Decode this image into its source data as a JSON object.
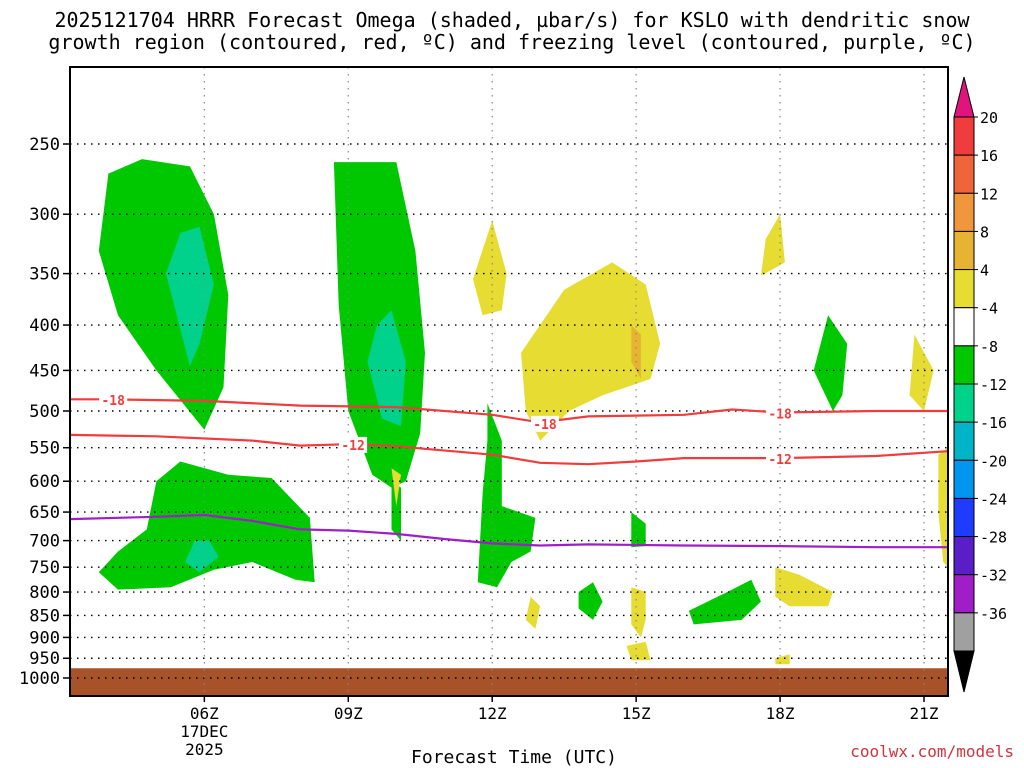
{
  "title_line1": "2025121704 HRRR Forecast Omega (shaded, µbar/s) for KSLO with dendritic snow",
  "title_line2": "growth region (contoured, red, ºC) and freezing level (contoured, purple, ºC)",
  "credit": "coolwx.com/models",
  "chart_data": {
    "type": "contour",
    "xlabel": "Forecast Time (UTC)",
    "ylabel": "",
    "xlim": [
      3.2,
      21.5
    ],
    "y_levels": [
      250,
      300,
      350,
      400,
      450,
      500,
      550,
      600,
      650,
      700,
      750,
      800,
      850,
      900,
      950,
      1000
    ],
    "x_ticks": [
      {
        "x": 6,
        "label": "06Z",
        "sub": [
          "17DEC",
          "2025"
        ]
      },
      {
        "x": 9,
        "label": "09Z",
        "sub": []
      },
      {
        "x": 12,
        "label": "12Z",
        "sub": []
      },
      {
        "x": 15,
        "label": "15Z",
        "sub": []
      },
      {
        "x": 18,
        "label": "18Z",
        "sub": []
      },
      {
        "x": 21,
        "label": "21Z",
        "sub": []
      }
    ],
    "colorbar": {
      "labels": [
        "20",
        "16",
        "12",
        "8",
        "4",
        "-4",
        "-8",
        "-12",
        "-16",
        "-20",
        "-24",
        "-28",
        "-32",
        "-36"
      ],
      "colors": [
        "#e0147c",
        "#f03c3c",
        "#f0643c",
        "#f0963c",
        "#e6b432",
        "#e6dc32",
        "#ffffff",
        "#00c800",
        "#00d28c",
        "#00b4c8",
        "#0096f0",
        "#1e3cff",
        "#5a1ec8",
        "#a01ec8",
        "#a0a0a0",
        "#000000"
      ]
    },
    "contours": [
      {
        "label": "-18",
        "color": "#f03c3c",
        "points": [
          [
            3.2,
            485
          ],
          [
            4.0,
            485
          ],
          [
            6.0,
            487
          ],
          [
            8.0,
            493
          ],
          [
            10.0,
            495
          ],
          [
            12.0,
            505
          ],
          [
            13.0,
            515
          ],
          [
            14.0,
            507
          ],
          [
            16.0,
            505
          ],
          [
            17.0,
            498
          ],
          [
            18.0,
            502
          ],
          [
            20.0,
            500
          ],
          [
            21.5,
            500
          ]
        ]
      },
      {
        "label": "-12",
        "color": "#f03c3c",
        "points": [
          [
            3.2,
            532
          ],
          [
            5.0,
            534
          ],
          [
            7.0,
            540
          ],
          [
            8.0,
            547
          ],
          [
            9.0,
            545
          ],
          [
            10.0,
            548
          ],
          [
            12.0,
            560
          ],
          [
            13.0,
            572
          ],
          [
            14.0,
            574
          ],
          [
            15.0,
            570
          ],
          [
            16.0,
            565
          ],
          [
            18.0,
            565
          ],
          [
            20.0,
            562
          ],
          [
            21.5,
            555
          ]
        ]
      },
      {
        "label": "",
        "color": "#a01ec8",
        "points": [
          [
            3.2,
            662
          ],
          [
            5.0,
            658
          ],
          [
            6.0,
            655
          ],
          [
            7.0,
            665
          ],
          [
            8.0,
            680
          ],
          [
            9.0,
            682
          ],
          [
            10.0,
            688
          ],
          [
            11.0,
            697
          ],
          [
            12.0,
            705
          ],
          [
            13.0,
            709
          ],
          [
            14.0,
            707
          ],
          [
            16.0,
            709
          ],
          [
            18.0,
            710
          ],
          [
            20.0,
            712
          ],
          [
            21.5,
            712
          ]
        ]
      }
    ],
    "contour_labels": [
      {
        "text": "-18",
        "x": 4.1,
        "y": 486
      },
      {
        "text": "-18",
        "x": 13.1,
        "y": 517
      },
      {
        "text": "-18",
        "x": 18.0,
        "y": 503
      },
      {
        "text": "-12",
        "x": 9.1,
        "y": 546
      },
      {
        "text": "-12",
        "x": 18.0,
        "y": 566
      }
    ],
    "regions": [
      {
        "value": -6,
        "points": [
          [
            4.0,
            270
          ],
          [
            4.7,
            260
          ],
          [
            5.7,
            265
          ],
          [
            6.2,
            300
          ],
          [
            6.5,
            370
          ],
          [
            6.4,
            470
          ],
          [
            6.0,
            525
          ],
          [
            5.0,
            450
          ],
          [
            4.2,
            390
          ],
          [
            3.8,
            330
          ]
        ]
      },
      {
        "value": -10,
        "points": [
          [
            5.5,
            315
          ],
          [
            5.2,
            350
          ],
          [
            5.7,
            445
          ],
          [
            5.9,
            420
          ],
          [
            6.2,
            360
          ],
          [
            5.9,
            310
          ]
        ]
      },
      {
        "value": -6,
        "points": [
          [
            5.0,
            600
          ],
          [
            5.5,
            570
          ],
          [
            6.5,
            590
          ],
          [
            7.4,
            595
          ],
          [
            8.2,
            660
          ],
          [
            8.3,
            780
          ],
          [
            7.9,
            775
          ],
          [
            7.0,
            740
          ],
          [
            6.2,
            755
          ],
          [
            5.3,
            790
          ],
          [
            4.2,
            795
          ],
          [
            3.8,
            760
          ],
          [
            4.2,
            720
          ],
          [
            4.8,
            680
          ]
        ]
      },
      {
        "value": -10,
        "points": [
          [
            5.8,
            700
          ],
          [
            5.6,
            740
          ],
          [
            5.9,
            760
          ],
          [
            6.3,
            730
          ],
          [
            6.1,
            700
          ]
        ]
      },
      {
        "value": -6,
        "points": [
          [
            8.7,
            262
          ],
          [
            10.0,
            262
          ],
          [
            10.4,
            330
          ],
          [
            10.6,
            430
          ],
          [
            10.5,
            530
          ],
          [
            10.2,
            600
          ],
          [
            9.9,
            610
          ],
          [
            9.5,
            590
          ],
          [
            9.0,
            500
          ],
          [
            8.8,
            380
          ]
        ]
      },
      {
        "value": -10,
        "points": [
          [
            9.6,
            400
          ],
          [
            9.4,
            440
          ],
          [
            9.7,
            510
          ],
          [
            10.1,
            520
          ],
          [
            10.2,
            440
          ],
          [
            9.9,
            385
          ]
        ]
      },
      {
        "value": -6,
        "points": [
          [
            9.9,
            600
          ],
          [
            10.1,
            610
          ],
          [
            10.1,
            700
          ],
          [
            9.9,
            680
          ]
        ]
      },
      {
        "value": -6,
        "points": [
          [
            11.9,
            490
          ],
          [
            12.2,
            540
          ],
          [
            12.2,
            640
          ],
          [
            12.9,
            660
          ],
          [
            12.8,
            720
          ],
          [
            12.4,
            740
          ],
          [
            12.1,
            790
          ],
          [
            11.7,
            780
          ],
          [
            11.8,
            620
          ],
          [
            11.9,
            540
          ]
        ]
      },
      {
        "value": -6,
        "points": [
          [
            14.9,
            650
          ],
          [
            15.2,
            670
          ],
          [
            15.2,
            710
          ],
          [
            14.9,
            712
          ]
        ]
      },
      {
        "value": -6,
        "points": [
          [
            13.8,
            800
          ],
          [
            14.1,
            780
          ],
          [
            14.3,
            820
          ],
          [
            14.1,
            860
          ],
          [
            13.8,
            835
          ]
        ]
      },
      {
        "value": -6,
        "points": [
          [
            16.1,
            840
          ],
          [
            16.9,
            800
          ],
          [
            17.4,
            775
          ],
          [
            17.6,
            820
          ],
          [
            17.2,
            860
          ],
          [
            16.2,
            870
          ]
        ]
      },
      {
        "value": -6,
        "points": [
          [
            19.0,
            390
          ],
          [
            19.4,
            420
          ],
          [
            19.3,
            480
          ],
          [
            19.1,
            500
          ],
          [
            18.7,
            450
          ]
        ]
      },
      {
        "value": 6,
        "points": [
          [
            12.0,
            305
          ],
          [
            12.3,
            350
          ],
          [
            12.2,
            385
          ],
          [
            11.8,
            390
          ],
          [
            11.6,
            355
          ]
        ]
      },
      {
        "value": 6,
        "points": [
          [
            13.5,
            365
          ],
          [
            14.5,
            340
          ],
          [
            15.2,
            360
          ],
          [
            15.5,
            420
          ],
          [
            15.3,
            460
          ],
          [
            14.3,
            480
          ],
          [
            13.6,
            500
          ],
          [
            13.0,
            540
          ],
          [
            12.7,
            500
          ],
          [
            12.6,
            430
          ]
        ]
      },
      {
        "value": 10,
        "points": [
          [
            14.9,
            400
          ],
          [
            15.1,
            410
          ],
          [
            15.1,
            460
          ],
          [
            14.9,
            440
          ]
        ]
      },
      {
        "value": 6,
        "points": [
          [
            17.7,
            320
          ],
          [
            18.0,
            300
          ],
          [
            18.1,
            340
          ],
          [
            17.6,
            352
          ]
        ]
      },
      {
        "value": 6,
        "points": [
          [
            20.8,
            410
          ],
          [
            21.2,
            450
          ],
          [
            21.0,
            500
          ],
          [
            20.7,
            480
          ]
        ]
      },
      {
        "value": 6,
        "points": [
          [
            21.3,
            560
          ],
          [
            21.5,
            550
          ],
          [
            21.5,
            750
          ],
          [
            21.4,
            740
          ],
          [
            21.3,
            650
          ]
        ]
      },
      {
        "value": 6,
        "points": [
          [
            9.9,
            580
          ],
          [
            10.1,
            590
          ],
          [
            10.0,
            640
          ]
        ]
      },
      {
        "value": 6,
        "points": [
          [
            12.8,
            810
          ],
          [
            13.0,
            830
          ],
          [
            12.9,
            880
          ],
          [
            12.7,
            860
          ]
        ]
      },
      {
        "value": 6,
        "points": [
          [
            14.9,
            790
          ],
          [
            15.2,
            800
          ],
          [
            15.2,
            860
          ],
          [
            15.1,
            900
          ],
          [
            14.9,
            870
          ]
        ]
      },
      {
        "value": 6,
        "points": [
          [
            14.8,
            920
          ],
          [
            15.2,
            910
          ],
          [
            15.3,
            955
          ],
          [
            14.9,
            955
          ]
        ]
      },
      {
        "value": 6,
        "points": [
          [
            17.9,
            750
          ],
          [
            18.4,
            765
          ],
          [
            19.1,
            800
          ],
          [
            19.0,
            830
          ],
          [
            18.2,
            830
          ],
          [
            17.9,
            810
          ]
        ]
      },
      {
        "value": 6,
        "points": [
          [
            17.9,
            950
          ],
          [
            18.2,
            940
          ],
          [
            18.2,
            965
          ],
          [
            17.9,
            965
          ]
        ]
      }
    ],
    "surface": {
      "from_level": 975,
      "color": "#a8522a"
    }
  }
}
